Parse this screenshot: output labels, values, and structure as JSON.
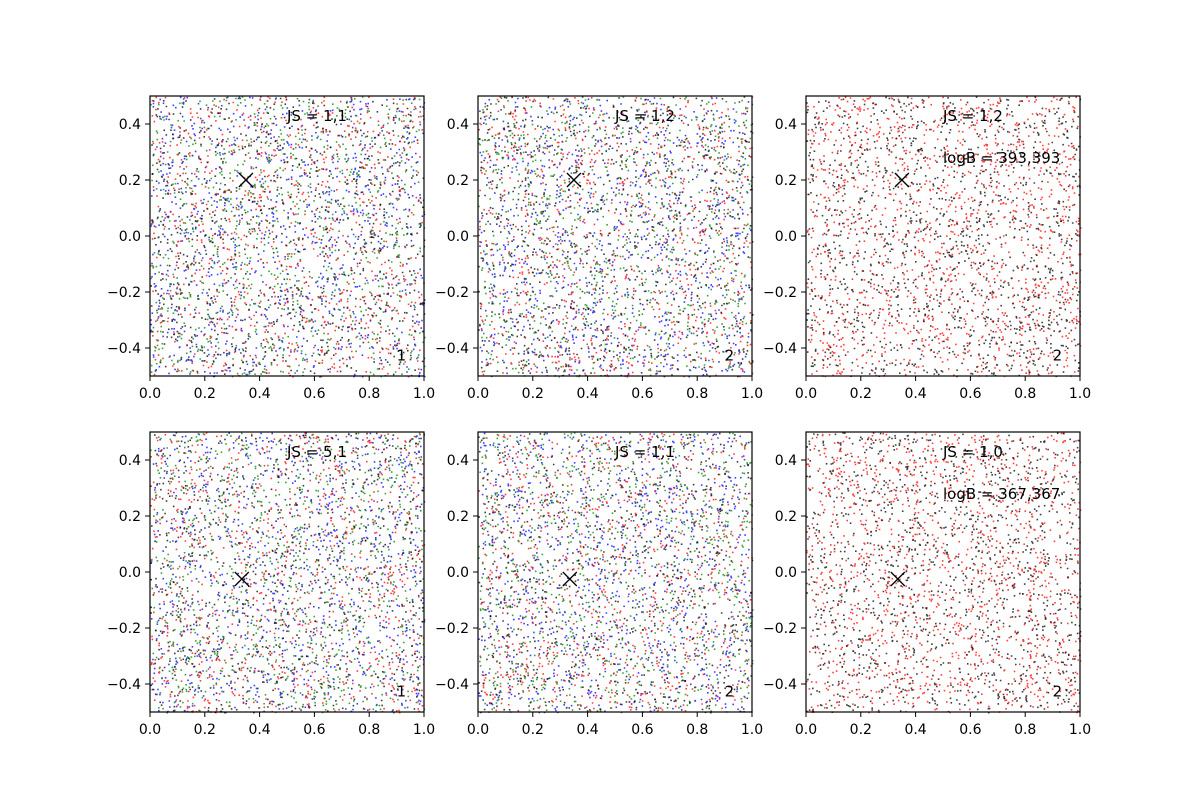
{
  "chart_data": [
    {
      "type": "scatter",
      "xlim": [
        0.0,
        1.0
      ],
      "ylim": [
        -0.5,
        0.5
      ],
      "xticks": [
        "0.0",
        "0.2",
        "0.4",
        "0.6",
        "0.8",
        "1.0"
      ],
      "yticks": [
        "−0.4",
        "−0.2",
        "0.0",
        "0.2",
        "0.4"
      ],
      "grid": false,
      "point_colors": [
        "#0000ff",
        "#ff0000",
        "#008000",
        "#000000"
      ],
      "marker": {
        "x": 0.35,
        "y": 0.2
      },
      "annotations": [
        "JS = 1,1"
      ],
      "corner_label": "1"
    },
    {
      "type": "scatter",
      "xlim": [
        0.0,
        1.0
      ],
      "ylim": [
        -0.5,
        0.5
      ],
      "xticks": [
        "0.0",
        "0.2",
        "0.4",
        "0.6",
        "0.8",
        "1.0"
      ],
      "yticks": [
        "−0.4",
        "−0.2",
        "0.0",
        "0.2",
        "0.4"
      ],
      "grid": false,
      "point_colors": [
        "#0000ff",
        "#ff0000",
        "#008000",
        "#000000"
      ],
      "marker": {
        "x": 0.35,
        "y": 0.2
      },
      "annotations": [
        "JS = 1,2"
      ],
      "corner_label": "2"
    },
    {
      "type": "scatter",
      "xlim": [
        0.0,
        1.0
      ],
      "ylim": [
        -0.5,
        0.5
      ],
      "xticks": [
        "0.0",
        "0.2",
        "0.4",
        "0.6",
        "0.8",
        "1.0"
      ],
      "yticks": [
        "−0.4",
        "−0.2",
        "0.0",
        "0.2",
        "0.4"
      ],
      "grid": false,
      "point_colors": [
        "#ff0000",
        "#000000"
      ],
      "marker": {
        "x": 0.35,
        "y": 0.2
      },
      "annotations": [
        "JS = 1,2",
        "logB = 393,393"
      ],
      "corner_label": "2"
    },
    {
      "type": "scatter",
      "xlim": [
        0.0,
        1.0
      ],
      "ylim": [
        -0.5,
        0.5
      ],
      "xticks": [
        "0.0",
        "0.2",
        "0.4",
        "0.6",
        "0.8",
        "1.0"
      ],
      "yticks": [
        "−0.4",
        "−0.2",
        "0.0",
        "0.2",
        "0.4"
      ],
      "grid": false,
      "point_colors": [
        "#0000ff",
        "#ff0000",
        "#008000",
        "#000000"
      ],
      "marker": {
        "x": 0.335,
        "y": -0.025
      },
      "annotations": [
        "JS = 5,1"
      ],
      "corner_label": "1"
    },
    {
      "type": "scatter",
      "xlim": [
        0.0,
        1.0
      ],
      "ylim": [
        -0.5,
        0.5
      ],
      "xticks": [
        "0.0",
        "0.2",
        "0.4",
        "0.6",
        "0.8",
        "1.0"
      ],
      "yticks": [
        "−0.4",
        "−0.2",
        "0.0",
        "0.2",
        "0.4"
      ],
      "grid": false,
      "point_colors": [
        "#0000ff",
        "#ff0000",
        "#008000",
        "#000000"
      ],
      "marker": {
        "x": 0.335,
        "y": -0.025
      },
      "annotations": [
        "JS = 1,1"
      ],
      "corner_label": "2"
    },
    {
      "type": "scatter",
      "xlim": [
        0.0,
        1.0
      ],
      "ylim": [
        -0.5,
        0.5
      ],
      "xticks": [
        "0.0",
        "0.2",
        "0.4",
        "0.6",
        "0.8",
        "1.0"
      ],
      "yticks": [
        "−0.4",
        "−0.2",
        "0.0",
        "0.2",
        "0.4"
      ],
      "grid": false,
      "point_colors": [
        "#ff0000",
        "#000000"
      ],
      "marker": {
        "x": 0.335,
        "y": -0.025
      },
      "annotations": [
        "JS = 1,0",
        "logB = 367,367"
      ],
      "corner_label": "2"
    }
  ]
}
